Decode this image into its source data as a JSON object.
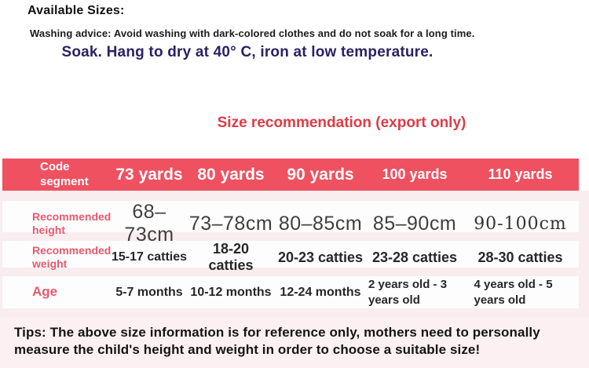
{
  "page": {
    "title": "Available Sizes:",
    "washing_advice": "Washing advice: Avoid washing with dark-colored clothes and do not soak for a long time.",
    "care_line": "Soak. Hang to dry at 40° C, iron at low temperature.",
    "table_title": "Size recommendation (export only)",
    "tips": "Tips: The above size information is for reference only, mothers need to personally measure the child's height and weight in order to choose a suitable size!"
  },
  "colors": {
    "header_bg": "#ef5161",
    "title_red": "#dc3c46",
    "label_pink": "#e8596e",
    "care_navy": "#2b2164",
    "table_band_bg": "#f9edef",
    "tips_bg": "#fdf0f2"
  },
  "size_table": {
    "columns": [
      "Code segment",
      "73 yards",
      "80 yards",
      "90 yards",
      "100 yards",
      "110 yards"
    ],
    "rows": [
      {
        "label": "Recommended height",
        "values": [
          "68–73cm",
          "73–78cm",
          "80–85cm",
          "85–90cm",
          "90-100cm"
        ]
      },
      {
        "label": "Recommended weight",
        "values": [
          "15-17 catties",
          "18-20 catties",
          "20-23 catties",
          "23-28 catties",
          "28-30 catties"
        ]
      },
      {
        "label": "Age",
        "values": [
          "5-7 months",
          "10-12 months",
          "12-24 months",
          "2 years old - 3 years old",
          "4 years old - 5 years old"
        ]
      }
    ]
  }
}
